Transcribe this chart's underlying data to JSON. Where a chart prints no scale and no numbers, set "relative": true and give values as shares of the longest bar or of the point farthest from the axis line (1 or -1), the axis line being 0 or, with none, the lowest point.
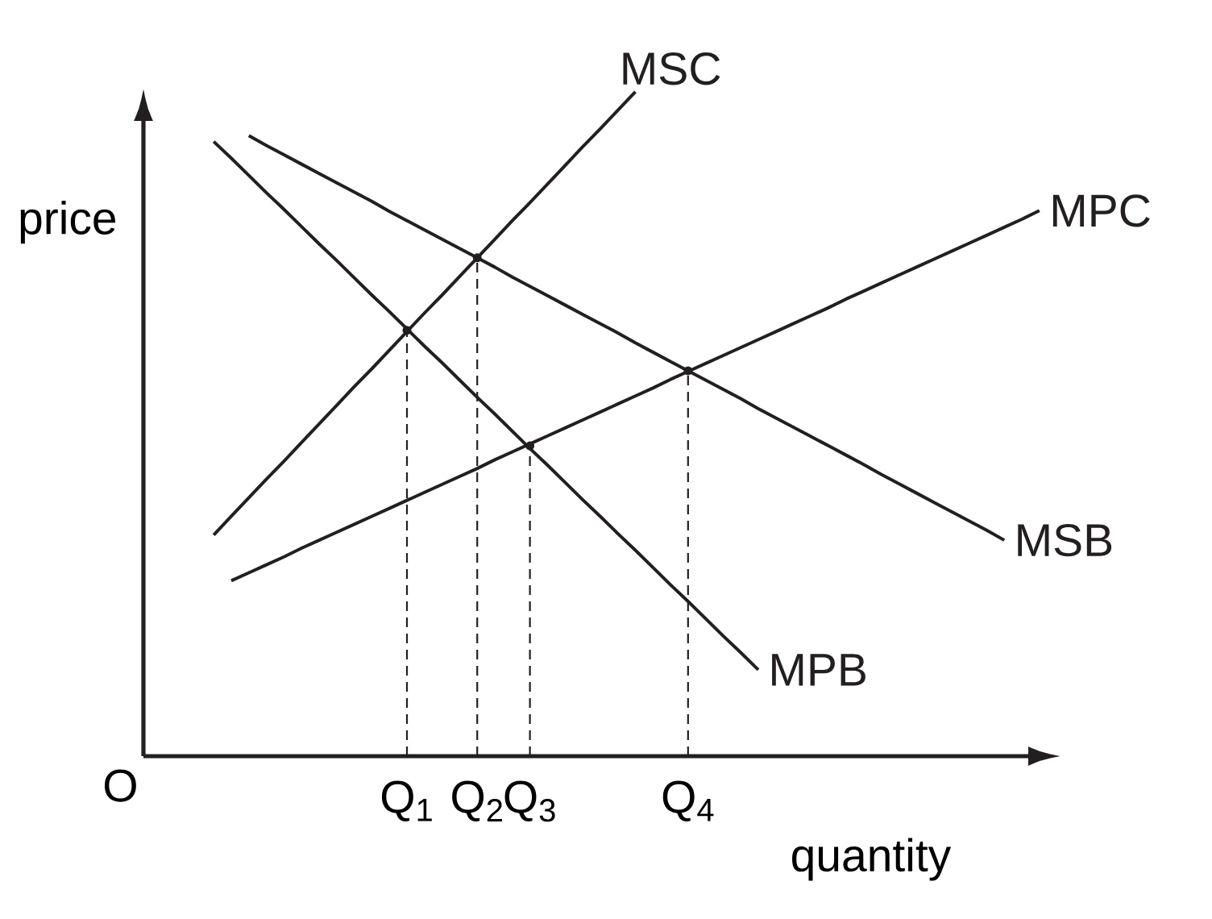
{
  "chart_data": {
    "type": "line",
    "relative": true,
    "xlabel": "quantity",
    "ylabel": "price",
    "line_style": "solid",
    "categories": [
      null,
      null,
      null,
      null,
      null,
      null,
      null,
      null,
      null,
      null,
      null,
      "Q$_{1}$",
      null,
      null,
      null,
      "Q$_{2}$",
      null,
      null,
      "Q$_{3}$",
      null,
      null,
      null,
      null,
      null,
      null,
      null,
      null,
      "Q$_{4}$",
      null,
      null,
      null,
      null,
      null,
      null,
      null,
      null,
      null,
      null,
      null,
      null,
      null,
      null,
      null,
      null,
      null,
      null,
      null,
      null
    ],
    "annotations": [
      "O"
    ],
    "series": [
      {
        "name": "MSC",
        "color": "#231f20",
        "values": [
          0.333,
          0.361,
          0.389,
          0.417,
          0.444,
          0.472,
          0.5,
          0.528,
          0.556,
          0.583,
          0.611,
          0.639,
          0.667,
          0.694,
          0.722,
          0.75,
          0.778,
          0.806,
          0.833,
          0.861,
          0.889,
          0.917,
          0.944,
          0.972,
          1.0,
          null,
          null,
          null,
          null,
          null,
          null,
          null,
          null,
          null,
          null,
          null,
          null,
          null,
          null,
          null,
          null,
          null,
          null,
          null,
          null,
          null,
          null,
          null
        ]
      },
      {
        "name": "MPC",
        "color": "#231f20",
        "values": [
          null,
          0.264,
          0.276,
          0.288,
          0.3,
          0.313,
          0.325,
          0.337,
          0.349,
          0.361,
          0.373,
          0.385,
          0.397,
          0.409,
          0.421,
          0.433,
          0.446,
          0.458,
          0.47,
          0.482,
          0.494,
          0.506,
          0.518,
          0.53,
          0.542,
          0.554,
          0.567,
          0.579,
          0.591,
          0.603,
          0.615,
          0.627,
          0.639,
          0.651,
          0.663,
          0.675,
          0.688,
          0.7,
          0.712,
          0.724,
          0.736,
          0.748,
          0.76,
          0.772,
          0.784,
          0.796,
          0.808,
          0.821
        ]
      },
      {
        "name": "MSB",
        "color": "#231f20",
        "values": [
          null,
          null,
          0.934,
          0.919,
          0.905,
          0.891,
          0.877,
          0.863,
          0.849,
          0.835,
          0.82,
          0.806,
          0.792,
          0.778,
          0.764,
          0.75,
          0.736,
          0.721,
          0.707,
          0.693,
          0.679,
          0.665,
          0.651,
          0.637,
          0.622,
          0.608,
          0.594,
          0.58,
          0.566,
          0.552,
          0.538,
          0.523,
          0.509,
          0.495,
          0.481,
          0.467,
          0.453,
          0.439,
          0.424,
          0.41,
          0.396,
          0.382,
          0.368,
          0.354,
          0.34,
          0.325,
          null,
          null
        ]
      },
      {
        "name": "MPB",
        "color": "#231f20",
        "values": [
          0.925,
          0.9,
          0.874,
          0.848,
          0.823,
          0.797,
          0.771,
          0.746,
          0.72,
          0.694,
          0.669,
          0.643,
          0.617,
          0.592,
          0.566,
          0.54,
          0.515,
          0.489,
          0.463,
          0.438,
          0.412,
          0.386,
          0.361,
          0.335,
          0.31,
          0.284,
          0.258,
          0.233,
          0.207,
          0.181,
          0.156,
          0.13,
          null,
          null,
          null,
          null,
          null,
          null,
          null,
          null,
          null,
          null,
          null,
          null,
          null,
          null,
          null,
          null
        ]
      },
      {
        "type": "lollipop",
        "color": "#231f20",
        "line_style": "dashed",
        "marker": "circle",
        "values": [
          null,
          null,
          null,
          null,
          null,
          null,
          null,
          null,
          null,
          null,
          null,
          0.641,
          null,
          null,
          null,
          0.75,
          null,
          null,
          0.467,
          null,
          null,
          null,
          null,
          null,
          null,
          null,
          null,
          0.58,
          null,
          null,
          null,
          null,
          null,
          null,
          null,
          null,
          null,
          null,
          null,
          null,
          null,
          null,
          null,
          null,
          null,
          null,
          null,
          null
        ]
      }
    ]
  }
}
